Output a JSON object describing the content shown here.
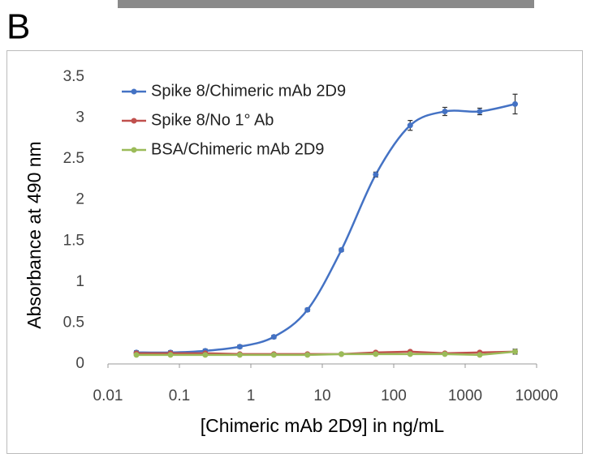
{
  "panel_label": "B",
  "chart_data": {
    "type": "line",
    "xlabel": "[Chimeric mAb 2D9] in ng/mL",
    "ylabel": "Absorbance at 490 nm",
    "xscale": "log",
    "x": [
      0.025,
      0.075,
      0.23,
      0.7,
      2.1,
      6.2,
      18.5,
      56,
      170,
      520,
      1600,
      5000
    ],
    "series": [
      {
        "name": "Spike 8/Chimeric mAb 2D9",
        "color": "#4472c4",
        "smooth": true,
        "values": [
          0.14,
          0.14,
          0.16,
          0.21,
          0.33,
          0.66,
          1.39,
          2.31,
          2.91,
          3.08,
          3.08,
          3.17
        ],
        "errors": [
          0.02,
          0.02,
          0.02,
          0.02,
          0.02,
          0.02,
          0.02,
          0.03,
          0.06,
          0.05,
          0.04,
          0.12
        ]
      },
      {
        "name": "Spike 8/No 1° Ab",
        "color": "#c0504d",
        "smooth": false,
        "values": [
          0.13,
          0.13,
          0.13,
          0.12,
          0.12,
          0.12,
          0.12,
          0.14,
          0.15,
          0.13,
          0.14,
          0.15
        ]
      },
      {
        "name": "BSA/Chimeric mAb 2D9",
        "color": "#9bbb59",
        "smooth": false,
        "values": [
          0.11,
          0.11,
          0.11,
          0.11,
          0.11,
          0.11,
          0.12,
          0.12,
          0.12,
          0.12,
          0.11,
          0.15
        ],
        "errors": [
          0.01,
          0.01,
          0.01,
          0.01,
          0.01,
          0.01,
          0.01,
          0.01,
          0.01,
          0.01,
          0.01,
          0.03
        ]
      }
    ],
    "xlim": [
      0.01,
      10000
    ],
    "xticks": [
      0.01,
      0.1,
      1,
      10,
      100,
      1000,
      10000
    ],
    "ylim": [
      0,
      3.5
    ],
    "yticks": [
      0,
      0.5,
      1,
      1.5,
      2,
      2.5,
      3,
      3.5
    ],
    "grid": false,
    "legend": "upper-left"
  }
}
